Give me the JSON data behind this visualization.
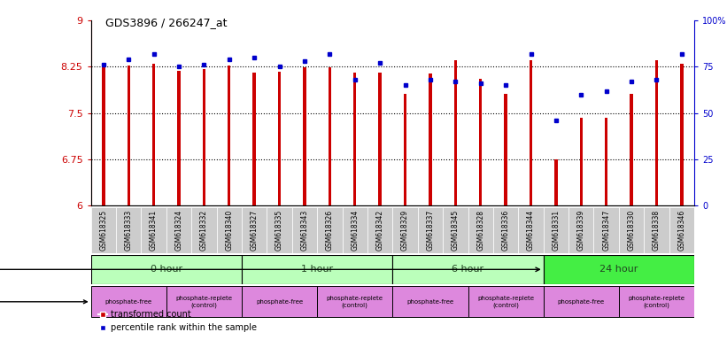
{
  "title": "GDS3896 / 266247_at",
  "samples": [
    "GSM618325",
    "GSM618333",
    "GSM618341",
    "GSM618324",
    "GSM618332",
    "GSM618340",
    "GSM618327",
    "GSM618335",
    "GSM618343",
    "GSM618326",
    "GSM618334",
    "GSM618342",
    "GSM618329",
    "GSM618337",
    "GSM618345",
    "GSM618328",
    "GSM618336",
    "GSM618344",
    "GSM618331",
    "GSM618339",
    "GSM618347",
    "GSM618330",
    "GSM618338",
    "GSM618346"
  ],
  "bar_values": [
    8.25,
    8.27,
    8.3,
    8.19,
    8.21,
    8.27,
    8.16,
    8.17,
    8.24,
    8.24,
    8.16,
    8.15,
    7.81,
    8.14,
    8.35,
    8.05,
    7.81,
    8.36,
    6.75,
    7.43,
    7.43,
    7.81,
    8.35,
    8.3
  ],
  "dot_values": [
    76,
    79,
    82,
    75,
    76,
    79,
    80,
    75,
    78,
    82,
    68,
    77,
    65,
    68,
    67,
    66,
    65,
    82,
    46,
    60,
    62,
    67,
    68,
    82
  ],
  "bar_color": "#cc0000",
  "dot_color": "#0000cc",
  "ylim_left": [
    6,
    9
  ],
  "ylim_right": [
    0,
    100
  ],
  "yticks_left": [
    6,
    6.75,
    7.5,
    8.25,
    9
  ],
  "yticks_right": [
    0,
    25,
    50,
    75,
    100
  ],
  "ytick_labels_right": [
    "0",
    "25",
    "50",
    "75",
    "100%"
  ],
  "hlines": [
    6.75,
    7.5,
    8.25
  ],
  "time_groups": [
    {
      "label": "0 hour",
      "start": 0,
      "end": 6,
      "color": "#bbffbb"
    },
    {
      "label": "1 hour",
      "start": 6,
      "end": 12,
      "color": "#bbffbb"
    },
    {
      "label": "6 hour",
      "start": 12,
      "end": 18,
      "color": "#bbffbb"
    },
    {
      "label": "24 hour",
      "start": 18,
      "end": 24,
      "color": "#44ee44"
    }
  ],
  "proto_groups": [
    {
      "label": "phosphate-free",
      "start": 0,
      "end": 3,
      "color": "#dd88dd"
    },
    {
      "label": "phosphate-replete\n(control)",
      "start": 3,
      "end": 6,
      "color": "#dd88dd"
    },
    {
      "label": "phosphate-free",
      "start": 6,
      "end": 9,
      "color": "#dd88dd"
    },
    {
      "label": "phosphate-replete\n(control)",
      "start": 9,
      "end": 12,
      "color": "#dd88dd"
    },
    {
      "label": "phosphate-free",
      "start": 12,
      "end": 15,
      "color": "#dd88dd"
    },
    {
      "label": "phosphate-replete\n(control)",
      "start": 15,
      "end": 18,
      "color": "#dd88dd"
    },
    {
      "label": "phosphate-free",
      "start": 18,
      "end": 21,
      "color": "#dd88dd"
    },
    {
      "label": "phosphate-replete\n(control)",
      "start": 21,
      "end": 24,
      "color": "#dd88dd"
    }
  ],
  "legend_bar_label": "transformed count",
  "legend_dot_label": "percentile rank within the sample",
  "background_color": "#ffffff",
  "sample_box_color": "#cccccc",
  "bar_width": 0.12
}
